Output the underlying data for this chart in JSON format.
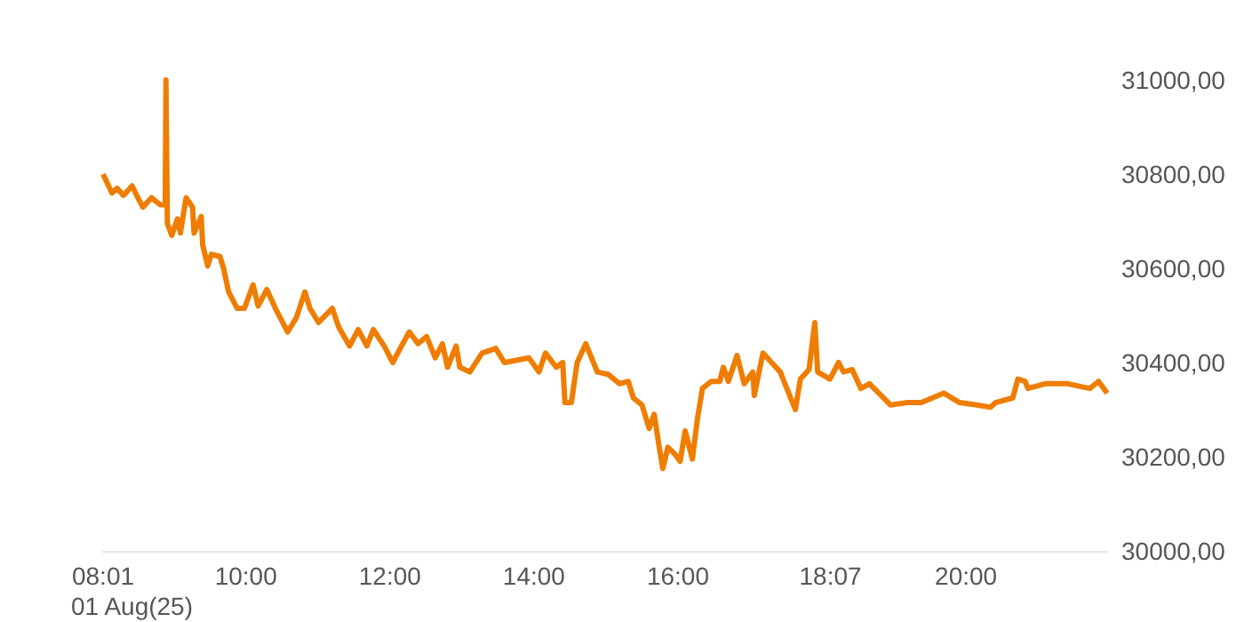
{
  "chart_data": {
    "type": "line",
    "xlim": [
      8.017,
      21.96
    ],
    "annotations": [
      "01 Aug(25)"
    ],
    "x": [
      8.017,
      8.14,
      8.21,
      8.3,
      8.42,
      8.5,
      8.57,
      8.69,
      8.81,
      8.88,
      8.89,
      8.91,
      8.97,
      9.05,
      9.09,
      9.17,
      9.26,
      9.28,
      9.38,
      9.4,
      9.47,
      9.52,
      9.64,
      9.69,
      9.76,
      9.88,
      9.98,
      10.1,
      10.17,
      10.29,
      10.41,
      10.58,
      10.7,
      10.82,
      10.89,
      11.01,
      11.2,
      11.29,
      11.44,
      11.56,
      11.68,
      11.77,
      11.92,
      12.04,
      12.16,
      12.27,
      12.39,
      12.51,
      12.63,
      12.73,
      12.8,
      12.92,
      12.97,
      13.11,
      13.28,
      13.47,
      13.59,
      13.93,
      14.07,
      14.16,
      14.31,
      14.4,
      14.43,
      14.52,
      14.6,
      14.72,
      14.88,
      15.03,
      15.19,
      15.31,
      15.38,
      15.5,
      15.6,
      15.67,
      15.74,
      15.79,
      15.86,
      15.96,
      16.03,
      16.1,
      16.2,
      16.27,
      16.34,
      16.46,
      16.58,
      16.63,
      16.7,
      16.82,
      16.92,
      17.04,
      17.06,
      17.18,
      17.3,
      17.42,
      17.63,
      17.7,
      17.82,
      17.9,
      17.94,
      18.11,
      18.23,
      18.3,
      18.42,
      18.54,
      18.66,
      18.95,
      19.19,
      19.38,
      19.69,
      19.91,
      20.15,
      20.34,
      20.41,
      20.65,
      20.72,
      20.82,
      20.86,
      21.1,
      21.41,
      21.72,
      21.84,
      21.96
    ],
    "series": [
      {
        "color": "#ef7d00",
        "values": [
          30800,
          30760,
          30770,
          30755,
          30775,
          30750,
          30730,
          30750,
          30735,
          30735,
          31000,
          30695,
          30670,
          30705,
          30675,
          30750,
          30730,
          30675,
          30710,
          30650,
          30605,
          30630,
          30625,
          30600,
          30550,
          30515,
          30515,
          30565,
          30520,
          30555,
          30515,
          30465,
          30495,
          30550,
          30515,
          30485,
          30515,
          30475,
          30435,
          30470,
          30435,
          30470,
          30435,
          30400,
          30435,
          30465,
          30440,
          30455,
          30410,
          30440,
          30390,
          30435,
          30390,
          30380,
          30420,
          30430,
          30400,
          30410,
          30380,
          30420,
          30390,
          30400,
          30315,
          30315,
          30400,
          30440,
          30380,
          30375,
          30355,
          30360,
          30325,
          30310,
          30260,
          30290,
          30220,
          30175,
          30220,
          30205,
          30190,
          30255,
          30195,
          30280,
          30345,
          30360,
          30360,
          30390,
          30360,
          30415,
          30355,
          30380,
          30330,
          30420,
          30400,
          30380,
          30300,
          30365,
          30385,
          30485,
          30380,
          30365,
          30400,
          30380,
          30385,
          30345,
          30355,
          30310,
          30315,
          30315,
          30335,
          30315,
          30310,
          30305,
          30315,
          30325,
          30365,
          30360,
          30345,
          30355,
          30355,
          30345,
          30360,
          30335
        ]
      }
    ],
    "xticks": [
      {
        "value": 8.017,
        "label": "08:01"
      },
      {
        "value": 10,
        "label": "10:00"
      },
      {
        "value": 12,
        "label": "12:00"
      },
      {
        "value": 14,
        "label": "14:00"
      },
      {
        "value": 16,
        "label": "16:00"
      },
      {
        "value": 18.117,
        "label": "18:07"
      },
      {
        "value": 20,
        "label": "20:00"
      }
    ],
    "ylim": [
      30000,
      31000
    ],
    "yticks": [
      {
        "value": 30000,
        "label": "30000,00"
      },
      {
        "value": 30200,
        "label": "30200,00"
      },
      {
        "value": 30400,
        "label": "30400,00"
      },
      {
        "value": 30600,
        "label": "30600,00"
      },
      {
        "value": 30800,
        "label": "30800,00"
      },
      {
        "value": 31000,
        "label": "31000,00"
      }
    ],
    "marker": "none",
    "line_style": "solid"
  }
}
